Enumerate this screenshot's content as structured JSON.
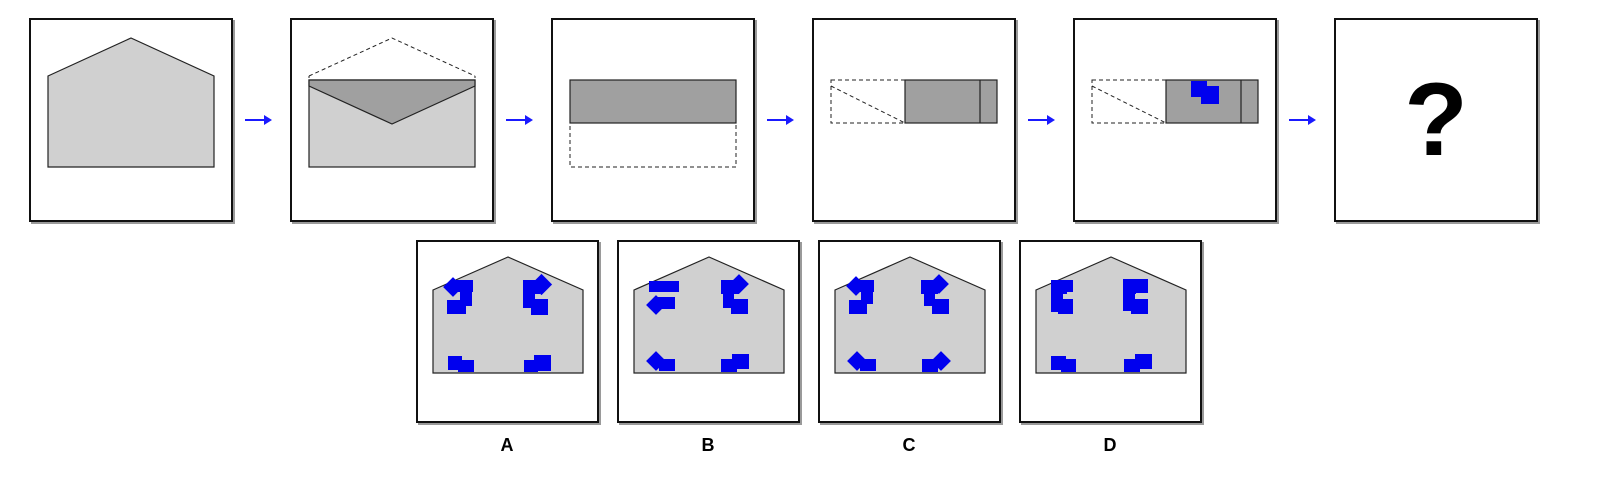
{
  "question_mark": "?",
  "options": [
    {
      "label": "A"
    },
    {
      "label": "B"
    },
    {
      "label": "C"
    },
    {
      "label": "D"
    }
  ],
  "colors": {
    "paper_fill": "#d0d0d0",
    "flap_fill": "#a0a0a0",
    "stamp_blue": "#0000ee",
    "arrow_blue": "#1a1aff"
  }
}
